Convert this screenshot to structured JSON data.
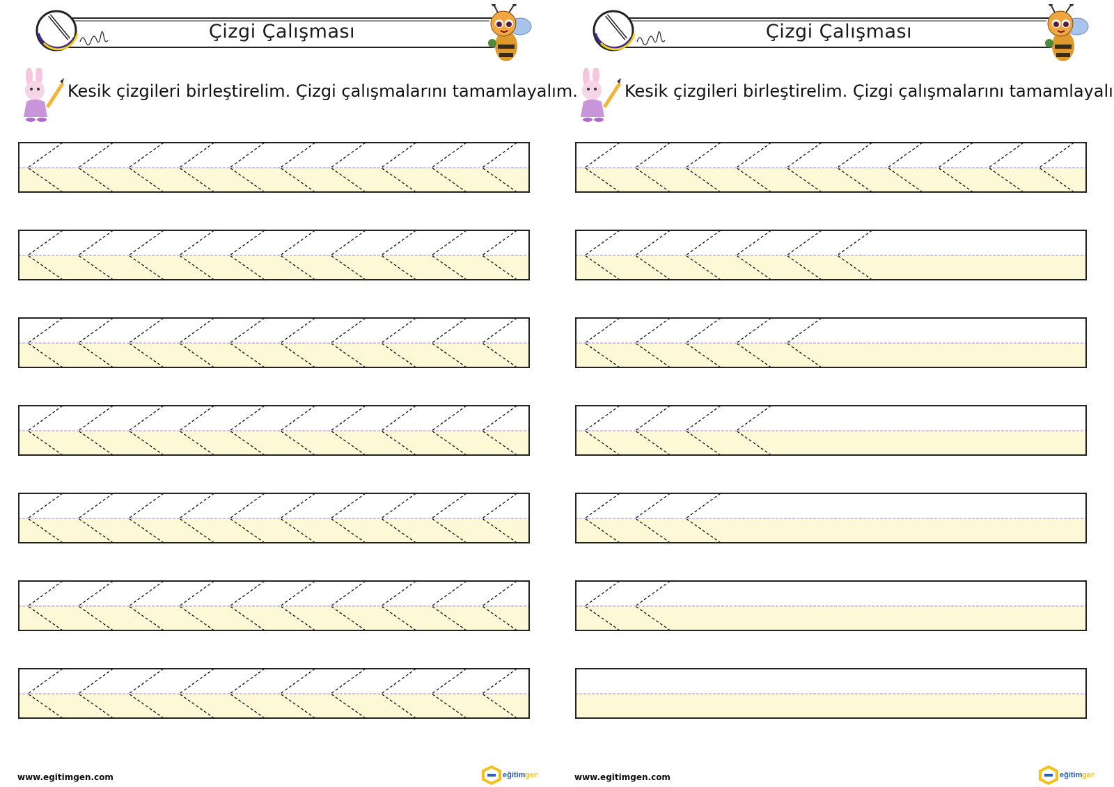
{
  "pages": [
    {
      "title": "Çizgi Çalışması",
      "instruction": "Kesik çizgileri birleştirelim. Çizgi çalışmalarını tamamlayalım.",
      "footer_url": "www.egitimgen.com",
      "logo_text": "eğitimgen",
      "guided_counts": [
        10,
        10,
        10,
        10,
        10,
        10,
        10
      ]
    },
    {
      "title": "Çizgi Çalışması",
      "instruction": "Kesik çizgileri birleştirelim. Çizgi çalışmalarını tamamlayalım.",
      "footer_url": "www.egitimgen.com",
      "logo_text": "eğitimgen",
      "guided_counts": [
        10,
        6,
        5,
        4,
        3,
        2,
        0
      ]
    }
  ],
  "colors": {
    "lower_band": "#fdf8d6",
    "midline": "#b59ce6",
    "guide_stroke": "#111111",
    "border": "#222222",
    "logo_yellow": "#f4c11a",
    "logo_blue": "#2b5fb4"
  },
  "icons": [
    "pencil-circle-icon",
    "bee-mascot-icon",
    "bunny-pencil-icon",
    "egitimgen-logo-icon"
  ]
}
